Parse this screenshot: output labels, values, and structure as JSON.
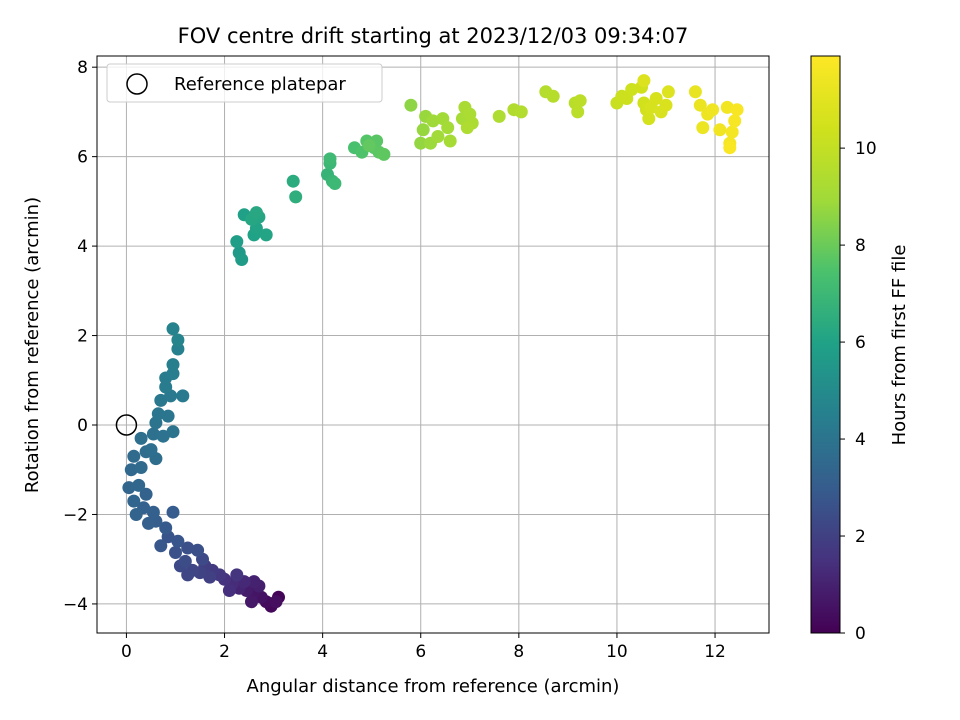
{
  "chart_data": {
    "type": "scatter",
    "title": "FOV centre drift starting at 2023/12/03 09:34:07",
    "xlabel": "Angular distance from reference (arcmin)",
    "ylabel": "Rotation from reference (arcmin)",
    "xlim": [
      -0.6,
      13.1
    ],
    "ylim": [
      -4.65,
      8.25
    ],
    "xticks": [
      "0",
      "2",
      "4",
      "6",
      "8",
      "10",
      "12"
    ],
    "yticks": [
      "−4",
      "−2",
      "0",
      "2",
      "4",
      "6",
      "8"
    ],
    "grid": true,
    "legend": {
      "position": "top-left",
      "entries": [
        "Reference platepar"
      ]
    },
    "reference_point": {
      "x": 0,
      "y": 0
    },
    "colorbar": {
      "label": "Hours from first FF file",
      "range": [
        0,
        11.9
      ],
      "ticks": [
        "0",
        "2",
        "4",
        "6",
        "8",
        "10"
      ],
      "colormap": "viridis"
    },
    "series": [
      {
        "points": [
          [
            3.1,
            -3.85,
            0.1
          ],
          [
            2.95,
            -4.05,
            0.2
          ],
          [
            2.85,
            -3.95,
            0.3
          ],
          [
            3.05,
            -3.95,
            0.4
          ],
          [
            2.75,
            -3.85,
            0.5
          ],
          [
            2.6,
            -3.75,
            0.6
          ],
          [
            2.55,
            -3.95,
            0.7
          ],
          [
            2.45,
            -3.7,
            0.8
          ],
          [
            2.7,
            -3.6,
            0.9
          ],
          [
            2.6,
            -3.5,
            1.0
          ],
          [
            2.3,
            -3.65,
            1.1
          ],
          [
            2.4,
            -3.5,
            1.2
          ],
          [
            2.15,
            -3.55,
            1.3
          ],
          [
            2.1,
            -3.7,
            1.4
          ],
          [
            2.0,
            -3.45,
            1.5
          ],
          [
            2.25,
            -3.35,
            1.6
          ],
          [
            1.9,
            -3.35,
            1.7
          ],
          [
            1.75,
            -3.25,
            1.8
          ],
          [
            1.6,
            -3.15,
            1.9
          ],
          [
            1.7,
            -3.4,
            2.0
          ],
          [
            1.5,
            -3.3,
            2.1
          ],
          [
            1.35,
            -3.25,
            2.15
          ],
          [
            1.25,
            -3.35,
            2.2
          ],
          [
            1.1,
            -3.15,
            2.3
          ],
          [
            1.55,
            -3.0,
            2.35
          ],
          [
            1.2,
            -3.05,
            2.4
          ],
          [
            1.45,
            -2.8,
            2.5
          ],
          [
            1.25,
            -2.75,
            2.55
          ],
          [
            1.0,
            -2.85,
            2.6
          ],
          [
            0.85,
            -2.5,
            2.7
          ],
          [
            1.05,
            -2.6,
            2.75
          ],
          [
            0.7,
            -2.7,
            2.8
          ],
          [
            0.8,
            -2.3,
            2.9
          ],
          [
            0.95,
            -1.95,
            3.0
          ],
          [
            0.6,
            -2.15,
            3.05
          ],
          [
            0.45,
            -2.2,
            3.1
          ],
          [
            0.55,
            -1.95,
            3.15
          ],
          [
            0.35,
            -1.85,
            3.2
          ],
          [
            0.4,
            -1.55,
            3.25
          ],
          [
            0.2,
            -2.0,
            3.3
          ],
          [
            0.15,
            -1.7,
            3.35
          ],
          [
            0.05,
            -1.4,
            3.4
          ],
          [
            0.25,
            -1.35,
            3.45
          ],
          [
            0.1,
            -1.0,
            3.5
          ],
          [
            0.3,
            -0.95,
            3.55
          ],
          [
            0.15,
            -0.7,
            3.6
          ],
          [
            0.4,
            -0.6,
            3.65
          ],
          [
            0.6,
            -0.75,
            3.7
          ],
          [
            0.5,
            -0.55,
            3.75
          ],
          [
            0.3,
            -0.3,
            3.8
          ],
          [
            0.55,
            -0.2,
            3.85
          ],
          [
            0.75,
            -0.25,
            3.9
          ],
          [
            0.6,
            0.05,
            3.95
          ],
          [
            0.95,
            -0.15,
            4.0
          ],
          [
            0.85,
            0.2,
            4.05
          ],
          [
            0.65,
            0.25,
            4.1
          ],
          [
            0.7,
            0.55,
            4.15
          ],
          [
            0.9,
            0.65,
            4.2
          ],
          [
            1.15,
            0.65,
            4.25
          ],
          [
            0.8,
            0.85,
            4.3
          ],
          [
            0.8,
            1.05,
            4.35
          ],
          [
            0.95,
            1.15,
            4.4
          ],
          [
            0.95,
            1.35,
            4.45
          ],
          [
            1.05,
            1.7,
            4.5
          ],
          [
            0.95,
            2.15,
            4.6
          ],
          [
            1.05,
            1.9,
            4.7
          ],
          [
            2.3,
            3.85,
            5.6
          ],
          [
            2.35,
            3.7,
            5.7
          ],
          [
            2.25,
            4.1,
            5.8
          ],
          [
            2.4,
            4.7,
            5.9
          ],
          [
            2.6,
            4.25,
            6.0
          ],
          [
            2.65,
            4.4,
            6.05
          ],
          [
            2.85,
            4.25,
            6.1
          ],
          [
            2.7,
            4.65,
            6.15
          ],
          [
            2.55,
            4.6,
            6.2
          ],
          [
            2.65,
            4.75,
            6.25
          ],
          [
            3.4,
            5.45,
            6.4
          ],
          [
            3.45,
            5.1,
            6.5
          ],
          [
            4.1,
            5.6,
            6.8
          ],
          [
            4.2,
            5.45,
            6.9
          ],
          [
            4.15,
            5.85,
            6.95
          ],
          [
            4.25,
            5.4,
            7.0
          ],
          [
            4.15,
            5.95,
            7.05
          ],
          [
            4.65,
            6.2,
            7.4
          ],
          [
            4.8,
            6.1,
            7.5
          ],
          [
            4.9,
            6.35,
            7.6
          ],
          [
            5.05,
            6.2,
            7.65
          ],
          [
            5.1,
            6.35,
            7.7
          ],
          [
            5.15,
            6.1,
            7.75
          ],
          [
            5.25,
            6.05,
            7.8
          ],
          [
            4.95,
            6.25,
            7.85
          ],
          [
            5.8,
            7.15,
            8.6
          ],
          [
            6.0,
            6.3,
            8.7
          ],
          [
            6.05,
            6.6,
            8.75
          ],
          [
            6.1,
            6.9,
            8.8
          ],
          [
            6.2,
            6.3,
            8.85
          ],
          [
            6.25,
            6.8,
            8.9
          ],
          [
            6.35,
            6.45,
            8.95
          ],
          [
            6.45,
            6.85,
            9.0
          ],
          [
            6.55,
            6.65,
            9.05
          ],
          [
            6.6,
            6.35,
            9.1
          ],
          [
            6.85,
            6.85,
            9.15
          ],
          [
            6.9,
            7.1,
            9.2
          ],
          [
            7.0,
            6.95,
            9.25
          ],
          [
            7.05,
            6.75,
            9.3
          ],
          [
            6.95,
            6.65,
            9.35
          ],
          [
            7.6,
            6.9,
            9.4
          ],
          [
            7.9,
            7.05,
            9.45
          ],
          [
            8.05,
            7.0,
            9.5
          ],
          [
            8.55,
            7.45,
            9.55
          ],
          [
            8.7,
            7.35,
            9.6
          ],
          [
            9.15,
            7.2,
            9.7
          ],
          [
            9.2,
            7.0,
            9.75
          ],
          [
            9.25,
            7.25,
            9.8
          ],
          [
            10.0,
            7.2,
            10.2
          ],
          [
            10.1,
            7.35,
            10.25
          ],
          [
            10.2,
            7.3,
            10.3
          ],
          [
            10.3,
            7.5,
            10.35
          ],
          [
            10.5,
            7.55,
            10.4
          ],
          [
            10.55,
            7.2,
            10.45
          ],
          [
            10.6,
            7.05,
            10.5
          ],
          [
            10.65,
            6.85,
            10.55
          ],
          [
            10.7,
            7.1,
            10.6
          ],
          [
            10.8,
            7.3,
            10.65
          ],
          [
            10.9,
            7.0,
            10.7
          ],
          [
            11.0,
            7.15,
            10.75
          ],
          [
            10.55,
            7.7,
            10.8
          ],
          [
            11.05,
            7.45,
            10.85
          ],
          [
            11.6,
            7.45,
            11.2
          ],
          [
            11.7,
            7.15,
            11.3
          ],
          [
            11.75,
            6.65,
            11.35
          ],
          [
            11.85,
            6.95,
            11.4
          ],
          [
            11.95,
            7.05,
            11.45
          ],
          [
            12.1,
            6.6,
            11.5
          ],
          [
            12.25,
            7.1,
            11.55
          ],
          [
            12.3,
            6.3,
            11.6
          ],
          [
            12.35,
            6.55,
            11.65
          ],
          [
            12.4,
            6.8,
            11.7
          ],
          [
            12.45,
            7.05,
            11.75
          ],
          [
            12.3,
            6.2,
            11.8
          ]
        ]
      }
    ]
  }
}
